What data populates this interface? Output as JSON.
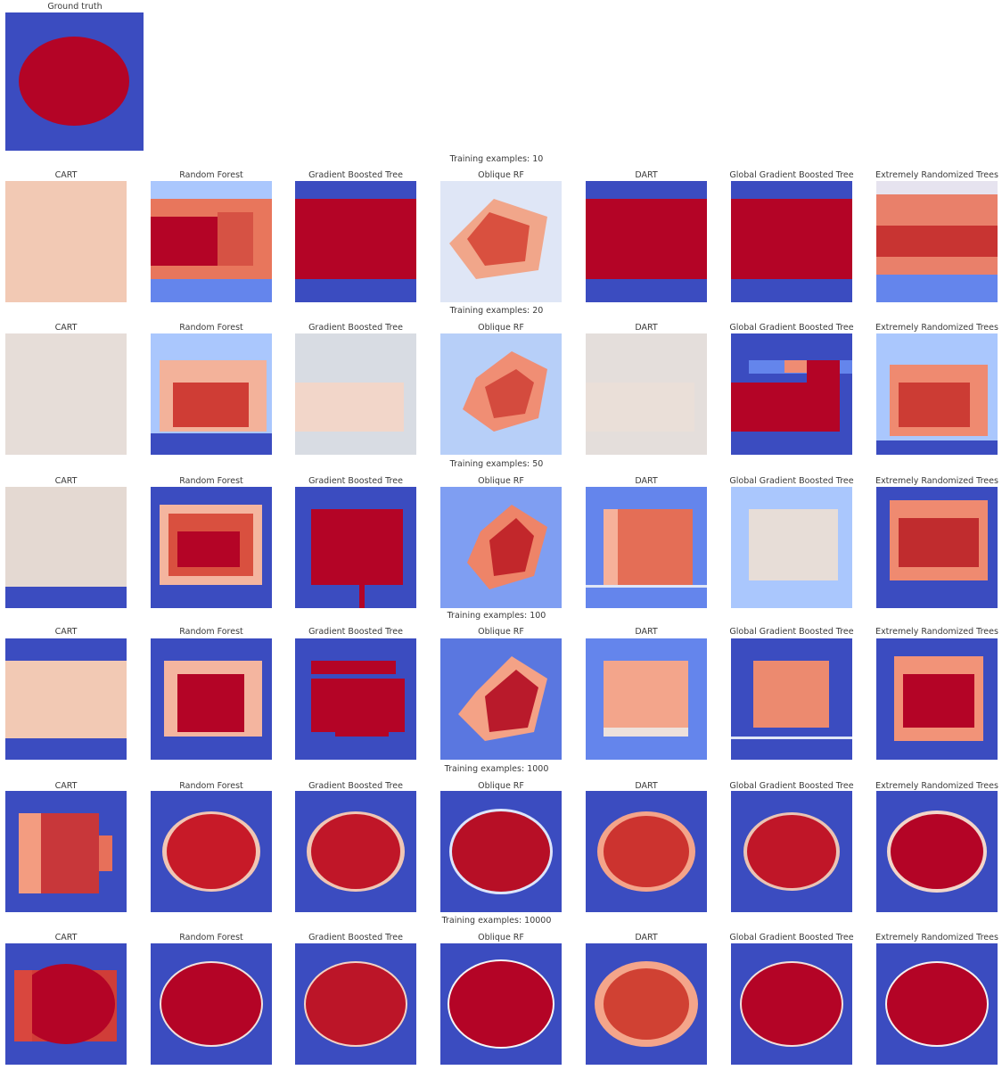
{
  "figure": {
    "ground_truth": {
      "title": "Ground truth"
    },
    "model_titles": [
      "CART",
      "Random Forest",
      "Gradient Boosted Tree",
      "Oblique RF",
      "DART",
      "Global Gradient Boosted Tree",
      "Extremely Randomized Trees"
    ],
    "rows": [
      {
        "title": "Training examples: 10"
      },
      {
        "title": "Training examples: 20"
      },
      {
        "title": "Training examples: 50"
      },
      {
        "title": "Training examples: 100"
      },
      {
        "title": "Training examples: 1000"
      },
      {
        "title": "Training examples: 10000"
      }
    ]
  },
  "colors": {
    "blue": "#3b4cc0",
    "red": "#b40426",
    "light_blue": "#aac7fd",
    "mid_blue": "#6485ec",
    "pale": "#dcdddd",
    "peach": "#f2c9b4",
    "salmon": "#ee8468",
    "orange_red": "#e46e56"
  }
}
